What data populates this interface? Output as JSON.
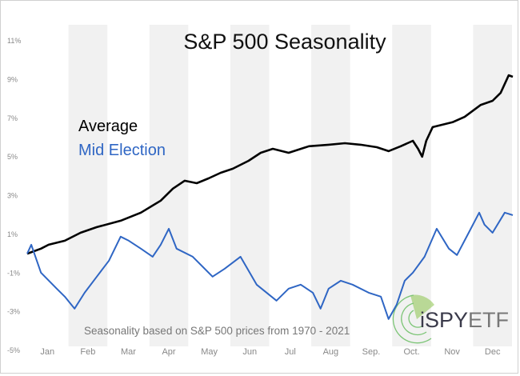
{
  "chart_data": {
    "type": "line",
    "title": "S&P 500 Seasonality",
    "annotation": "Seasonality based on S&P 500 prices from 1970 - 2021",
    "logo": "iSPYETF",
    "x_categories": [
      "Jan",
      "Feb",
      "Mar",
      "Apr",
      "May",
      "Jun",
      "Jul",
      "Aug",
      "Sep.",
      "Oct.",
      "Nov",
      "Dec"
    ],
    "shaded_months": [
      "Feb",
      "Apr",
      "Jun",
      "Aug",
      "Oct.",
      "Dec"
    ],
    "xlim": [
      1,
      13
    ],
    "ylim": [
      -5,
      11
    ],
    "y_ticks": [
      "11%",
      "9%",
      "7%",
      "5%",
      "3%",
      "1%",
      "-1%",
      "-3%",
      "-5%"
    ],
    "y_tick_values": [
      11,
      9,
      7,
      5,
      3,
      1,
      -1,
      -3,
      -5
    ],
    "grid": false,
    "legend_position": "upper-left",
    "series": [
      {
        "name": "Average",
        "color": "#000000",
        "x": [
          1.0,
          1.34,
          1.53,
          1.93,
          2.32,
          2.72,
          3.31,
          3.81,
          4.3,
          4.6,
          4.89,
          5.19,
          5.48,
          5.78,
          6.08,
          6.47,
          6.77,
          7.07,
          7.46,
          7.96,
          8.45,
          8.85,
          9.24,
          9.64,
          9.93,
          10.23,
          10.53,
          10.66,
          10.76,
          10.86,
          11.02,
          11.51,
          11.81,
          12.21,
          12.5,
          12.7,
          12.9,
          13.0
        ],
        "y": [
          0.0,
          0.26,
          0.46,
          0.67,
          1.08,
          1.37,
          1.7,
          2.12,
          2.74,
          3.36,
          3.77,
          3.64,
          3.89,
          4.18,
          4.39,
          4.8,
          5.21,
          5.42,
          5.21,
          5.55,
          5.63,
          5.71,
          5.63,
          5.5,
          5.3,
          5.55,
          5.83,
          5.42,
          5.01,
          5.83,
          6.54,
          6.79,
          7.07,
          7.69,
          7.9,
          8.31,
          9.22,
          9.14
        ]
      },
      {
        "name": "Mid Election",
        "color": "#2f66c4",
        "x": [
          1.0,
          1.1,
          1.34,
          1.73,
          1.93,
          2.17,
          2.42,
          2.72,
          3.02,
          3.31,
          3.51,
          3.81,
          4.1,
          4.3,
          4.5,
          4.69,
          5.09,
          5.58,
          5.88,
          6.27,
          6.67,
          7.16,
          7.46,
          7.76,
          8.06,
          8.25,
          8.45,
          8.75,
          9.04,
          9.44,
          9.74,
          9.93,
          10.13,
          10.33,
          10.53,
          10.82,
          11.12,
          11.42,
          11.62,
          11.91,
          12.17,
          12.3,
          12.5,
          12.8,
          13.0
        ],
        "y": [
          0.0,
          0.46,
          -0.98,
          -1.81,
          -2.22,
          -2.84,
          -2.02,
          -1.19,
          -0.36,
          0.88,
          0.67,
          0.26,
          -0.16,
          0.46,
          1.29,
          0.26,
          -0.16,
          -1.19,
          -0.78,
          -0.16,
          -1.6,
          -2.43,
          -1.81,
          -1.6,
          -2.02,
          -2.84,
          -1.81,
          -1.4,
          -1.6,
          -2.02,
          -2.22,
          -3.38,
          -2.64,
          -1.4,
          -0.98,
          -0.16,
          1.29,
          0.26,
          -0.07,
          1.08,
          2.12,
          1.5,
          1.08,
          2.12,
          1.99
        ]
      }
    ]
  }
}
